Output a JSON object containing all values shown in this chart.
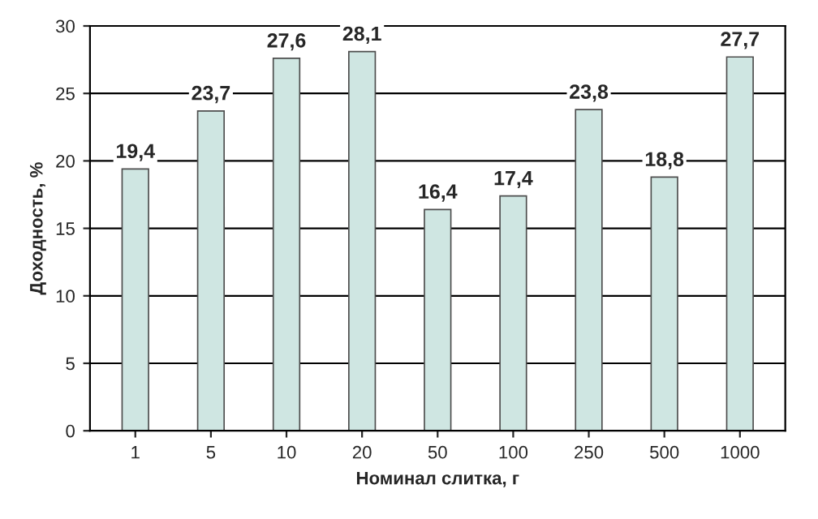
{
  "chart_data": {
    "type": "bar",
    "xlabel": "Номинал слитка, г",
    "ylabel": "Доходность, %",
    "categories": [
      "1",
      "5",
      "10",
      "20",
      "50",
      "100",
      "250",
      "500",
      "1000"
    ],
    "values": [
      19.4,
      23.7,
      27.6,
      28.1,
      16.4,
      17.4,
      23.8,
      18.8,
      27.7
    ],
    "value_labels": [
      "19,4",
      "23,7",
      "27,6",
      "28,1",
      "16,4",
      "17,4",
      "23,8",
      "18,8",
      "27,7"
    ],
    "color": "#cfe6e2",
    "ylim": [
      0,
      30
    ],
    "yticks": [
      0,
      5,
      10,
      15,
      20,
      25,
      30
    ],
    "grid": "y",
    "legend": false
  }
}
